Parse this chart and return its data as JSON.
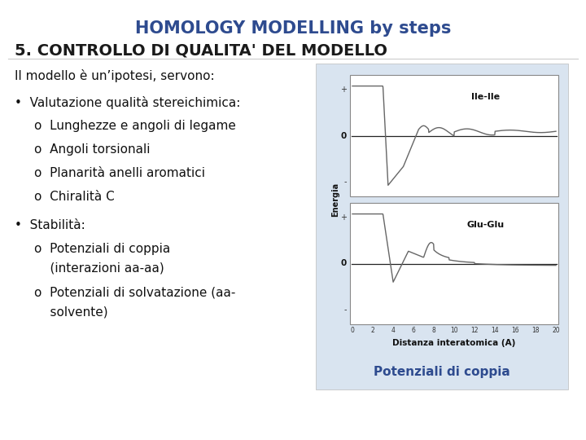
{
  "title": "HOMOLOGY MODELLING by steps",
  "subtitle": "5. CONTROLLO DI QUALITA' DEL MODELLO",
  "title_color": "#2E4B8F",
  "subtitle_color": "#1a1a1a",
  "background_color": "#ffffff",
  "left_lines": [
    {
      "text": "Il modello è un’ipotesi, servono:",
      "indent": 0
    },
    {
      "text": "•  Valutazione qualità stereichimica:",
      "indent": 0
    },
    {
      "text": "o  Lunghezze e angoli di legame",
      "indent": 1
    },
    {
      "text": "o  Angoli torsionali",
      "indent": 1
    },
    {
      "text": "o  Planarità anelli aromatici",
      "indent": 1
    },
    {
      "text": "o  Chiralità C",
      "indent": 1
    },
    {
      "text": "•  Stabilità:",
      "indent": 0
    },
    {
      "text": "o  Potenziali di coppia",
      "indent": 1
    },
    {
      "text": "    (interazioni aa-aa)",
      "indent": 1
    },
    {
      "text": "o  Potenziali di solvatazione (aa-",
      "indent": 1
    },
    {
      "text": "    solvente)",
      "indent": 1
    }
  ],
  "panel_bg": "#d9e4f0",
  "panel_caption": "Potenziali di coppia",
  "panel_caption_color": "#2E4B8F",
  "graph_bg": "#ffffff",
  "graph_border": "#888888"
}
